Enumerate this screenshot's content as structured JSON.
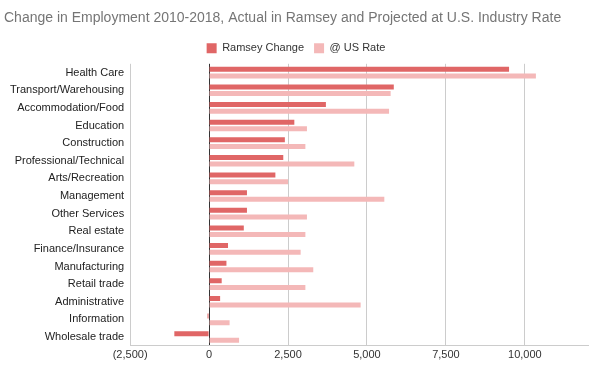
{
  "chart_data": {
    "type": "bar",
    "title": "Change in Employment 2010-2018, Actual in Ramsey and Projected at U.S. Industry Rate",
    "orientation": "horizontal",
    "categories": [
      "Health Care",
      "Transport/Warehousing",
      "Accommodation/Food",
      "Education",
      "Construction",
      "Professional/Technical",
      "Arts/Recreation",
      "Management",
      "Other Services",
      "Real estate",
      "Finance/Insurance",
      "Manufacturing",
      "Retail trade",
      "Administrative",
      "Information",
      "Wholesale trade"
    ],
    "series": [
      {
        "name": "Ramsey Change",
        "color": "#e06666",
        "values": [
          9500,
          5850,
          3700,
          2700,
          2400,
          2350,
          2100,
          1200,
          1200,
          1100,
          600,
          550,
          400,
          350,
          -50,
          -1100
        ]
      },
      {
        "name": "@ US Rate",
        "color": "#f4b8b8",
        "values": [
          10350,
          5750,
          5700,
          3100,
          3050,
          4600,
          2500,
          5550,
          3100,
          3050,
          2900,
          3300,
          3050,
          4800,
          650,
          950
        ]
      }
    ],
    "xlim": [
      -2500,
      12000
    ],
    "xticks": [
      {
        "value": -2500,
        "label": "(2,500)"
      },
      0,
      {
        "value": 2500,
        "label": "2,500"
      },
      {
        "value": 5000,
        "label": "5,000"
      },
      {
        "value": 7500,
        "label": "7,500"
      },
      {
        "value": 10000,
        "label": "10,000"
      }
    ],
    "grid": true,
    "legend": "top"
  }
}
